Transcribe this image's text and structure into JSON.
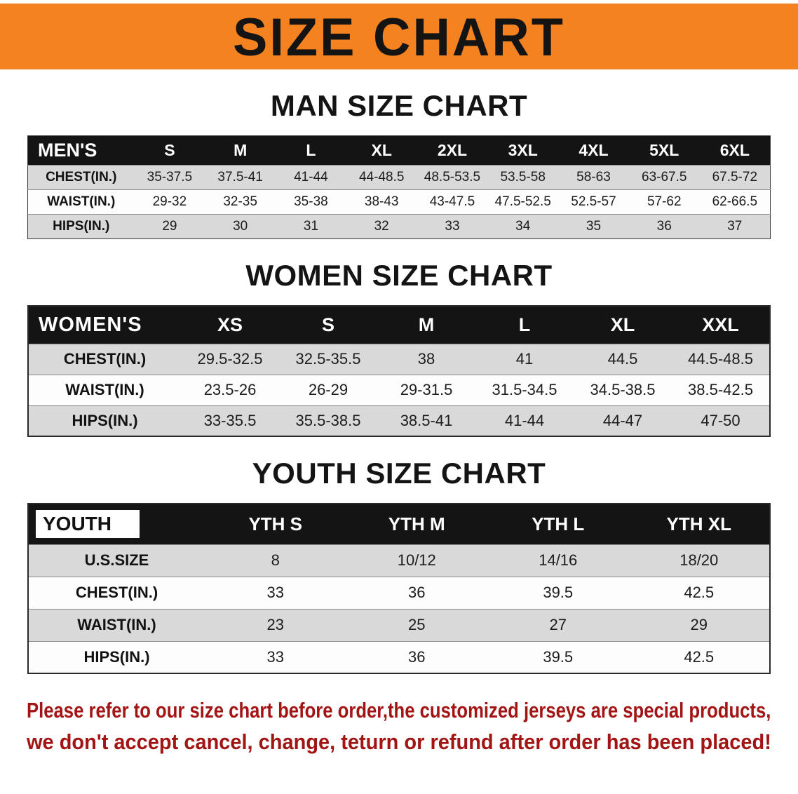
{
  "banner": {
    "title": "SIZE CHART"
  },
  "men": {
    "heading": "MAN SIZE CHART",
    "header": [
      "MEN'S",
      "S",
      "M",
      "L",
      "XL",
      "2XL",
      "3XL",
      "4XL",
      "5XL",
      "6XL"
    ],
    "rows": [
      {
        "label": "CHEST(IN.)",
        "values": [
          "35-37.5",
          "37.5-41",
          "41-44",
          "44-48.5",
          "48.5-53.5",
          "53.5-58",
          "58-63",
          "63-67.5",
          "67.5-72"
        ]
      },
      {
        "label": "WAIST(IN.)",
        "values": [
          "29-32",
          "32-35",
          "35-38",
          "38-43",
          "43-47.5",
          "47.5-52.5",
          "52.5-57",
          "57-62",
          "62-66.5"
        ]
      },
      {
        "label": "HIPS(IN.)",
        "values": [
          "29",
          "30",
          "31",
          "32",
          "33",
          "34",
          "35",
          "36",
          "37"
        ]
      }
    ]
  },
  "women": {
    "heading": "WOMEN SIZE CHART",
    "header": [
      "WOMEN'S",
      "XS",
      "S",
      "M",
      "L",
      "XL",
      "XXL"
    ],
    "rows": [
      {
        "label": "CHEST(IN.)",
        "values": [
          "29.5-32.5",
          "32.5-35.5",
          "38",
          "41",
          "44.5",
          "44.5-48.5"
        ]
      },
      {
        "label": "WAIST(IN.)",
        "values": [
          "23.5-26",
          "26-29",
          "29-31.5",
          "31.5-34.5",
          "34.5-38.5",
          "38.5-42.5"
        ]
      },
      {
        "label": "HIPS(IN.)",
        "values": [
          "33-35.5",
          "35.5-38.5",
          "38.5-41",
          "41-44",
          "44-47",
          "47-50"
        ]
      }
    ]
  },
  "youth": {
    "heading": "YOUTH SIZE CHART",
    "header": [
      "YOUTH",
      "YTH S",
      "YTH M",
      "YTH L",
      "YTH XL"
    ],
    "rows": [
      {
        "label": "U.S.SIZE",
        "values": [
          "8",
          "10/12",
          "14/16",
          "18/20"
        ]
      },
      {
        "label": "CHEST(IN.)",
        "values": [
          "33",
          "36",
          "39.5",
          "42.5"
        ]
      },
      {
        "label": "WAIST(IN.)",
        "values": [
          "23",
          "25",
          "27",
          "29"
        ]
      },
      {
        "label": "HIPS(IN.)",
        "values": [
          "33",
          "36",
          "39.5",
          "42.5"
        ]
      }
    ]
  },
  "notice": {
    "line1": "Please refer to our size chart before order,the customized jerseys are special products,",
    "line2": "we don't accept cancel, change, teturn or refund after order has been placed!"
  },
  "colors": {
    "banner_orange": "#f58220",
    "header_black": "#141414",
    "row_shade_gray": "#d9d9d9",
    "notice_red": "#a31515"
  }
}
